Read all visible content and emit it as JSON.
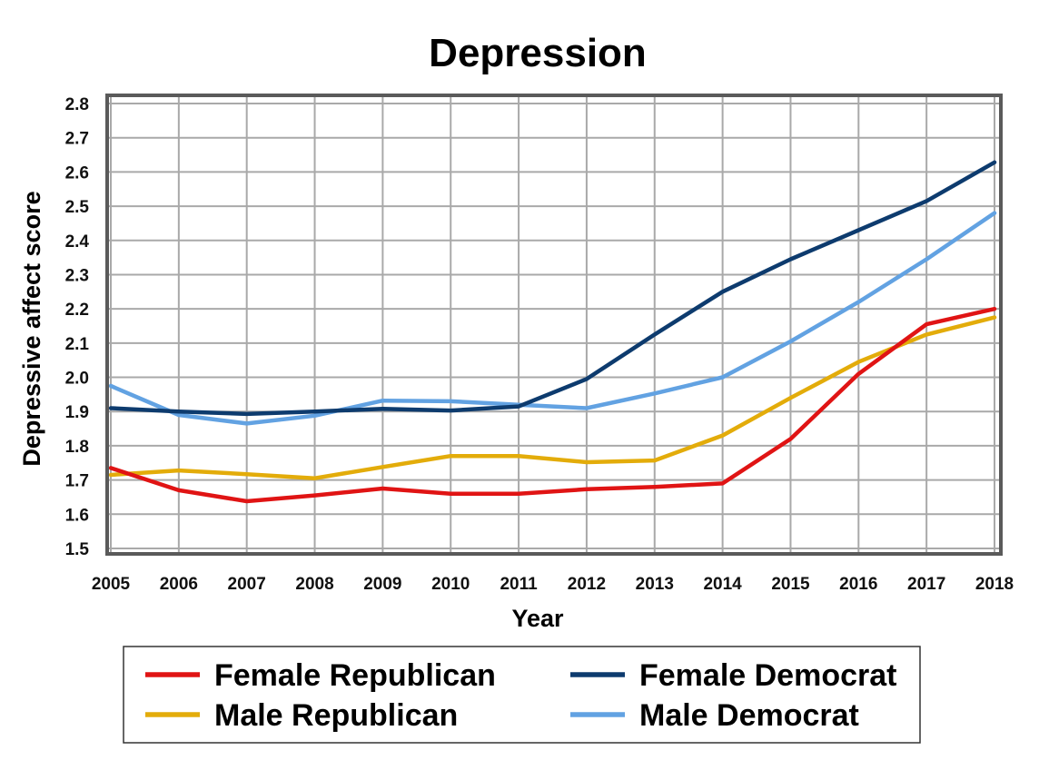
{
  "chart_data": {
    "type": "line",
    "title": "Depression",
    "xlabel": "Year",
    "ylabel": "Depressive affect score",
    "x": [
      "2005",
      "2006",
      "2007",
      "2008",
      "2009",
      "2010",
      "2011",
      "2012",
      "2013",
      "2014",
      "2015",
      "2016",
      "2017",
      "2018"
    ],
    "ylim": [
      1.5,
      2.8
    ],
    "yticks": [
      "1.5",
      "1.6",
      "1.7",
      "1.8",
      "1.9",
      "2.0",
      "2.1",
      "2.2",
      "2.3",
      "2.4",
      "2.5",
      "2.6",
      "2.7",
      "2.8"
    ],
    "grid": true,
    "legend_position": "bottom",
    "series": [
      {
        "name": "Female Republican",
        "color": "#e01414",
        "values": [
          1.735,
          1.67,
          1.638,
          1.655,
          1.675,
          1.66,
          1.66,
          1.673,
          1.68,
          1.69,
          1.82,
          2.01,
          2.155,
          2.2
        ]
      },
      {
        "name": "Female Democrat",
        "color": "#0d3b6e",
        "values": [
          1.91,
          1.9,
          1.893,
          1.9,
          1.908,
          1.903,
          1.915,
          1.995,
          2.125,
          2.25,
          2.345,
          2.43,
          2.515,
          2.628
        ]
      },
      {
        "name": "Male Republican",
        "color": "#e3ac0a",
        "values": [
          1.715,
          1.728,
          1.717,
          1.705,
          1.738,
          1.77,
          1.77,
          1.752,
          1.757,
          1.83,
          1.94,
          2.045,
          2.125,
          2.175
        ]
      },
      {
        "name": "Male Democrat",
        "color": "#62a2e2",
        "values": [
          1.975,
          1.89,
          1.865,
          1.888,
          1.932,
          1.93,
          1.92,
          1.91,
          1.953,
          2.0,
          2.105,
          2.22,
          2.345,
          2.48
        ]
      }
    ]
  }
}
